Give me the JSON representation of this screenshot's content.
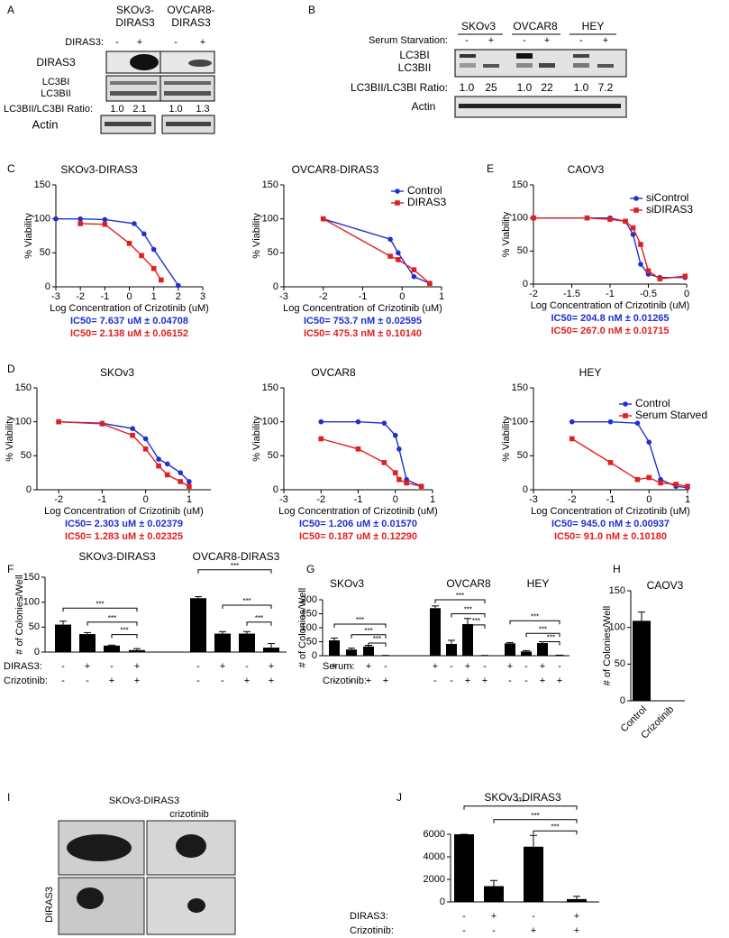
{
  "panel_A": {
    "letter": "A",
    "headers": [
      [
        "SKOv3-",
        "DIRAS3"
      ],
      [
        "OVCAR8-",
        "DIRAS3"
      ]
    ],
    "row_label": "DIRAS3:",
    "signs": [
      "-",
      "+",
      "-",
      "+"
    ],
    "bands": [
      "DIRAS3",
      "LC3BI",
      "LC3BII",
      "Actin"
    ],
    "ratio_label": "LC3BII/LC3BI Ratio:",
    "ratios": [
      "1.0",
      "2.1",
      "1.0",
      "1.3"
    ]
  },
  "panel_B": {
    "letter": "B",
    "headers": [
      "SKOv3",
      "OVCAR8",
      "HEY"
    ],
    "row_label": "Serum Starvation:",
    "signs": [
      "-",
      "+",
      "-",
      "+",
      "-",
      "+"
    ],
    "bands": [
      "LC3BI",
      "LC3BII",
      "Actin"
    ],
    "ratio_label": "LC3BII/LC3BI Ratio:",
    "ratios": [
      "1.0",
      "25",
      "1.0",
      "22",
      "1.0",
      "7.2"
    ]
  },
  "panel_I": {
    "letter": "I",
    "title": "SKOv3-DIRAS3",
    "column_label": "crizotinib",
    "row_label": "DIRAS3"
  },
  "chart_data": [
    {
      "type": "dose",
      "panel": "C",
      "title": "SKOv3-DIRAS3",
      "ylabel": "% Viability",
      "xlabel": "Log Concentration of Crizotinib (uM)",
      "xlim": [
        -3,
        3
      ],
      "xticks": [
        -3,
        -2,
        -1,
        0,
        1,
        2,
        3
      ],
      "ylim": [
        0,
        150
      ],
      "yticks": [
        0,
        50,
        100,
        150
      ],
      "series": [
        {
          "color": "#1f2fd0",
          "marker": "circle",
          "x": [
            -3,
            -2,
            -1,
            0.2,
            0.6,
            1,
            2
          ],
          "values": [
            100,
            100,
            99,
            93,
            78,
            55,
            2
          ]
        },
        {
          "color": "#e02020",
          "marker": "square",
          "x": [
            -2,
            -1,
            0,
            0.5,
            1,
            1.3
          ],
          "values": [
            93,
            92,
            64,
            46,
            27,
            10
          ]
        }
      ],
      "annotations": [
        "IC50= 7.637 uM ± 0.04708",
        "IC50= 2.138 uM ± 0.06152"
      ]
    },
    {
      "type": "dose",
      "title": "OVCAR8-DIRAS3",
      "ylabel": "% Viability",
      "xlabel": "Log Concentration of Crizotinib (uM)",
      "xlim": [
        -3,
        1
      ],
      "xticks": [
        -3,
        -2,
        -1,
        0,
        1
      ],
      "ylim": [
        0,
        150
      ],
      "yticks": [
        0,
        50,
        100,
        150
      ],
      "series": [
        {
          "name": "Control",
          "color": "#1f2fd0",
          "marker": "circle",
          "x": [
            -2,
            -0.3,
            -0.1,
            0.3,
            0.7
          ],
          "values": [
            100,
            70,
            50,
            15,
            5
          ]
        },
        {
          "name": "DIRAS3",
          "color": "#e02020",
          "marker": "square",
          "x": [
            -2,
            -0.3,
            -0.1,
            0.3,
            0.7
          ],
          "values": [
            100,
            45,
            40,
            25,
            5
          ]
        }
      ],
      "annotations": [
        "IC50= 753.7 nM ± 0.02595",
        "IC50= 475.3 nM ± 0.10140"
      ]
    },
    {
      "type": "dose",
      "panel": "E",
      "title": "CAOV3",
      "ylabel": "% Viability",
      "xlabel": "Log Concentration of Crizotinib (uM)",
      "xlim": [
        -2,
        0
      ],
      "xticks": [
        -2,
        -1.5,
        -1,
        -0.5,
        0
      ],
      "ylim": [
        0,
        150
      ],
      "yticks": [
        0,
        50,
        100,
        150
      ],
      "series": [
        {
          "name": "siControl",
          "color": "#1f2fd0",
          "marker": "circle",
          "x": [
            -2,
            -1.3,
            -1,
            -0.8,
            -0.7,
            -0.6,
            -0.5,
            -0.35,
            -0.02
          ],
          "values": [
            100,
            100,
            100,
            95,
            75,
            30,
            15,
            10,
            10
          ]
        },
        {
          "name": "siDIRAS3",
          "color": "#e02020",
          "marker": "square",
          "x": [
            -2,
            -1.3,
            -1,
            -0.8,
            -0.7,
            -0.6,
            -0.5,
            -0.35,
            -0.02
          ],
          "values": [
            100,
            100,
            98,
            95,
            85,
            60,
            20,
            8,
            12
          ]
        }
      ],
      "annotations": [
        "IC50= 204.8 nM ± 0.01265",
        "IC50= 267.0 nM ± 0.01715"
      ]
    },
    {
      "type": "dose",
      "panel": "D",
      "title": "SKOv3",
      "ylabel": "% Viability",
      "xlabel": "Log Concentration of Crizotinib (uM)",
      "xlim": [
        -2.5,
        1.5
      ],
      "xticks": [
        -2,
        -1,
        0,
        1
      ],
      "ylim": [
        0,
        150
      ],
      "yticks": [
        0,
        50,
        100,
        150
      ],
      "series": [
        {
          "color": "#1f2fd0",
          "marker": "circle",
          "x": [
            -2,
            -1,
            -0.3,
            0,
            0.3,
            0.5,
            0.8,
            1
          ],
          "values": [
            100,
            98,
            90,
            75,
            45,
            38,
            25,
            12
          ]
        },
        {
          "color": "#e02020",
          "marker": "square",
          "x": [
            -2,
            -1,
            -0.3,
            0,
            0.3,
            0.5,
            0.8,
            1
          ],
          "values": [
            100,
            97,
            80,
            60,
            35,
            22,
            12,
            5
          ]
        }
      ],
      "annotations": [
        "IC50= 2.303 uM ± 0.02379",
        "IC50= 1.283 uM ± 0.02325"
      ]
    },
    {
      "type": "dose",
      "title": "OVCAR8",
      "ylabel": "% Viability",
      "xlabel": "Log Concentration of Crizotinib (uM)",
      "xlim": [
        -3,
        1
      ],
      "xticks": [
        -3,
        -2,
        -1,
        0,
        1
      ],
      "ylim": [
        0,
        150
      ],
      "yticks": [
        0,
        50,
        100,
        150
      ],
      "series": [
        {
          "color": "#1f2fd0",
          "marker": "circle",
          "x": [
            -2,
            -1,
            -0.3,
            0,
            0.1,
            0.3,
            0.7
          ],
          "values": [
            100,
            100,
            98,
            80,
            60,
            15,
            5
          ]
        },
        {
          "color": "#e02020",
          "marker": "square",
          "x": [
            -2,
            -1,
            -0.3,
            0,
            0.1,
            0.3,
            0.7
          ],
          "values": [
            75,
            60,
            40,
            25,
            15,
            10,
            5
          ]
        }
      ],
      "annotations": [
        "IC50= 1.206 uM ± 0.01570",
        "IC50= 0.187 uM ± 0.12290"
      ]
    },
    {
      "type": "dose",
      "title": "HEY",
      "ylabel": "% Viability",
      "xlabel": "Log Concentration of Crizotinib (uM)",
      "xlim": [
        -3,
        1
      ],
      "xticks": [
        -3,
        -2,
        -1,
        0,
        1
      ],
      "ylim": [
        0,
        150
      ],
      "yticks": [
        0,
        50,
        100,
        150
      ],
      "series": [
        {
          "name": "Control",
          "color": "#1f2fd0",
          "marker": "circle",
          "x": [
            -2,
            -1,
            -0.3,
            0,
            0.3,
            0.7,
            1
          ],
          "values": [
            100,
            100,
            98,
            70,
            15,
            5,
            3
          ]
        },
        {
          "name": "Serum Starved",
          "color": "#e02020",
          "marker": "square",
          "x": [
            -2,
            -1,
            -0.3,
            0,
            0.3,
            0.7,
            1
          ],
          "values": [
            75,
            40,
            15,
            18,
            10,
            8,
            5
          ]
        }
      ],
      "annotations": [
        "IC50= 945.0 nM ± 0.00937",
        "IC50= 91.0 nM ± 0.10180"
      ]
    },
    {
      "type": "bar",
      "panel": "F",
      "group_labels": [
        "SKOv3-DIRAS3",
        "OVCAR8-DIRAS3"
      ],
      "ylabel": "# of Colonies/Well",
      "color": "#000000",
      "ylim": [
        0,
        150
      ],
      "yticks": [
        0,
        50,
        100,
        150
      ],
      "values": [
        55,
        36,
        13,
        4,
        108,
        37,
        37,
        9
      ],
      "errors": [
        7,
        3,
        1,
        3,
        3,
        4,
        4,
        8
      ],
      "significance": [
        "***",
        "***",
        "***",
        "***",
        "***",
        "***"
      ],
      "conditions": [
        {
          "label": "DIRAS3:",
          "values": [
            "-",
            "+",
            "-",
            "+",
            "-",
            "+",
            "-",
            "+"
          ]
        },
        {
          "label": "Crizotinib:",
          "values": [
            "-",
            "-",
            "+",
            "+",
            "-",
            "-",
            "+",
            "+"
          ]
        }
      ]
    },
    {
      "type": "bar",
      "panel": "G",
      "group_labels": [
        "SKOv3",
        "OVCAR8",
        "HEY"
      ],
      "ylabel": "# of Colonies/Well",
      "color": "#000000",
      "ylim": [
        0,
        200
      ],
      "yticks": [
        0,
        50,
        100,
        150,
        200
      ],
      "values": [
        55,
        22,
        33,
        1,
        170,
        42,
        113,
        1,
        44,
        15,
        45,
        2
      ],
      "errors": [
        8,
        5,
        4,
        0,
        8,
        13,
        20,
        0,
        3,
        3,
        5,
        0
      ],
      "significance": [
        "***",
        "***",
        "***",
        "***",
        "***",
        "***",
        "***",
        "***",
        "***"
      ],
      "conditions": [
        {
          "label": "Serum:",
          "values": [
            "+",
            "-",
            "+",
            "-",
            "+",
            "-",
            "+",
            "-",
            "+",
            "-",
            "+",
            "-"
          ]
        },
        {
          "label": "Crizotinib:",
          "values": [
            "-",
            "-",
            "+",
            "+",
            "-",
            "-",
            "+",
            "+",
            "-",
            "-",
            "+",
            "+"
          ]
        }
      ]
    },
    {
      "type": "bar",
      "panel": "H",
      "title": "CAOV3",
      "ylabel": "# of Colonies/Well",
      "color": "#000000",
      "ylim": [
        0,
        150
      ],
      "yticks": [
        0,
        50,
        100,
        150
      ],
      "categories": [
        "Control",
        "Crizotinib"
      ],
      "values": [
        109,
        0
      ],
      "errors": [
        12,
        0
      ]
    },
    {
      "type": "bar",
      "panel": "J",
      "title": "SKOv3-DIRAS3",
      "color": "#000000",
      "ylim": [
        0,
        6000
      ],
      "yticks": [
        0,
        2000,
        4000,
        6000
      ],
      "values": [
        6000,
        1400,
        4900,
        250
      ],
      "errors": [
        0,
        500,
        1000,
        250
      ],
      "significance": [
        "***",
        "***",
        "***"
      ],
      "conditions": [
        {
          "label": "DIRAS3:",
          "values": [
            "-",
            "+",
            "-",
            "+"
          ]
        },
        {
          "label": "Crizotinib:",
          "values": [
            "-",
            "-",
            "+",
            "+"
          ]
        }
      ]
    }
  ]
}
